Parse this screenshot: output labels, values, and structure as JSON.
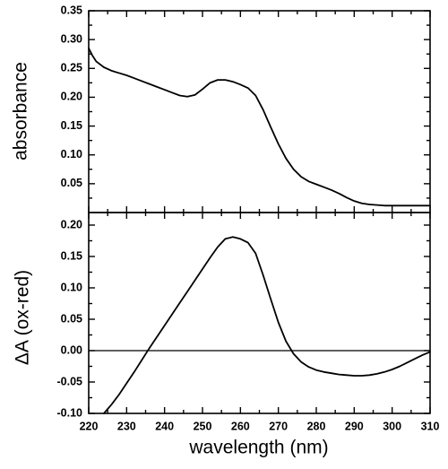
{
  "chart_data": [
    {
      "type": "line",
      "ylabel": "absorbance",
      "xlim": [
        220,
        310
      ],
      "ylim": [
        0,
        0.35
      ],
      "yticks": [
        "0.05",
        "0.10",
        "0.15",
        "0.20",
        "0.25",
        "0.30",
        "0.35"
      ],
      "grid": false,
      "series": [
        {
          "x": [
            220,
            221,
            222,
            224,
            226,
            228,
            230,
            232,
            234,
            236,
            238,
            240,
            242,
            244,
            246,
            248,
            250,
            252,
            254,
            256,
            258,
            260,
            262,
            264,
            266,
            268,
            270,
            272,
            274,
            276,
            278,
            280,
            282,
            284,
            286,
            288,
            290,
            292,
            294,
            296,
            298,
            300,
            305,
            310
          ],
          "y": [
            0.285,
            0.272,
            0.262,
            0.252,
            0.246,
            0.242,
            0.238,
            0.233,
            0.228,
            0.223,
            0.218,
            0.213,
            0.208,
            0.203,
            0.201,
            0.204,
            0.214,
            0.225,
            0.23,
            0.23,
            0.227,
            0.222,
            0.216,
            0.203,
            0.178,
            0.148,
            0.119,
            0.094,
            0.075,
            0.062,
            0.054,
            0.049,
            0.044,
            0.039,
            0.033,
            0.026,
            0.02,
            0.016,
            0.014,
            0.013,
            0.012,
            0.012,
            0.012,
            0.012
          ]
        }
      ]
    },
    {
      "type": "line",
      "xlabel": "wavelength (nm)",
      "ylabel": "ΔA (ox-red)",
      "xlim": [
        220,
        310
      ],
      "ylim": [
        -0.1,
        0.22
      ],
      "xticks": [
        "220",
        "230",
        "240",
        "250",
        "260",
        "270",
        "280",
        "290",
        "300",
        "310"
      ],
      "yticks": [
        "-0.10",
        "-0.05",
        "0.00",
        "0.05",
        "0.10",
        "0.15",
        "0.20"
      ],
      "reference_line_y": 0,
      "grid": false,
      "series": [
        {
          "x": [
            224,
            226,
            228,
            230,
            232,
            234,
            236,
            238,
            240,
            242,
            244,
            246,
            248,
            250,
            252,
            254,
            256,
            258,
            260,
            262,
            264,
            266,
            268,
            270,
            272,
            274,
            276,
            278,
            280,
            282,
            284,
            286,
            288,
            290,
            292,
            294,
            296,
            298,
            300,
            302,
            304,
            306,
            308,
            310
          ],
          "y": [
            -0.1,
            -0.086,
            -0.07,
            -0.052,
            -0.034,
            -0.015,
            0.004,
            0.022,
            0.04,
            0.058,
            0.076,
            0.094,
            0.112,
            0.13,
            0.148,
            0.165,
            0.178,
            0.181,
            0.178,
            0.172,
            0.155,
            0.12,
            0.082,
            0.045,
            0.015,
            -0.005,
            -0.018,
            -0.026,
            -0.031,
            -0.034,
            -0.036,
            -0.038,
            -0.039,
            -0.04,
            -0.04,
            -0.039,
            -0.037,
            -0.034,
            -0.03,
            -0.025,
            -0.019,
            -0.013,
            -0.007,
            -0.002
          ]
        }
      ]
    }
  ]
}
